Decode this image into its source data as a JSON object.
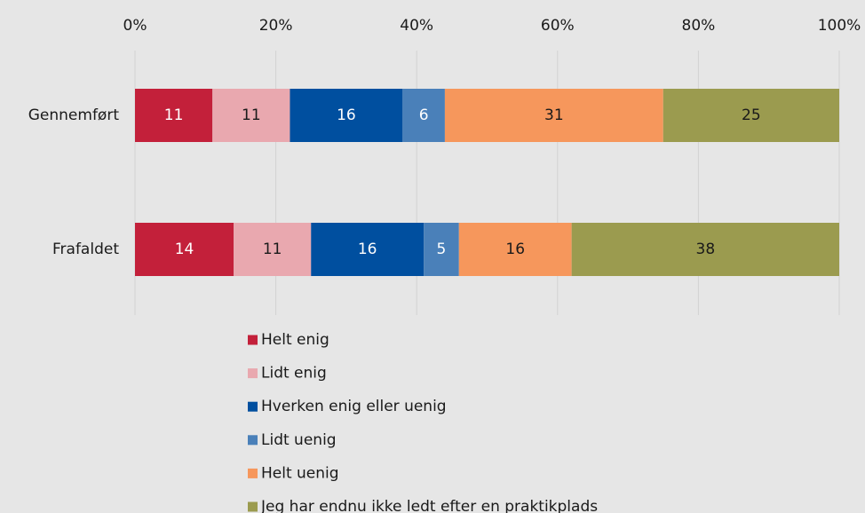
{
  "chart_data": {
    "type": "bar",
    "orientation": "horizontal",
    "stacked": true,
    "categories": [
      "Gennemført",
      "Frafaldet"
    ],
    "series": [
      {
        "name": "Helt enig",
        "color": "#c3203a",
        "values": [
          11,
          14
        ]
      },
      {
        "name": "Lidt enig",
        "color": "#e9a8af",
        "values": [
          11,
          11
        ]
      },
      {
        "name": "Hverken enig eller uenig",
        "color": "#004f9f",
        "values": [
          16,
          16
        ]
      },
      {
        "name": "Lidt uenig",
        "color": "#4a80b9",
        "values": [
          6,
          5
        ]
      },
      {
        "name": "Helt uenig",
        "color": "#f6975c",
        "values": [
          31,
          16
        ]
      },
      {
        "name": "Jeg har endnu ikke ledt efter en praktikplads",
        "color": "#9b9b4f",
        "values": [
          25,
          38
        ]
      }
    ],
    "xlim": [
      0,
      100
    ],
    "xticks": [
      {
        "value": 0,
        "label": "0%"
      },
      {
        "value": 20,
        "label": "20%"
      },
      {
        "value": 40,
        "label": "40%"
      },
      {
        "value": 60,
        "label": "60%"
      },
      {
        "value": 80,
        "label": "80%"
      },
      {
        "value": 100,
        "label": "100%"
      }
    ],
    "grid": true,
    "legend": "bottom"
  }
}
